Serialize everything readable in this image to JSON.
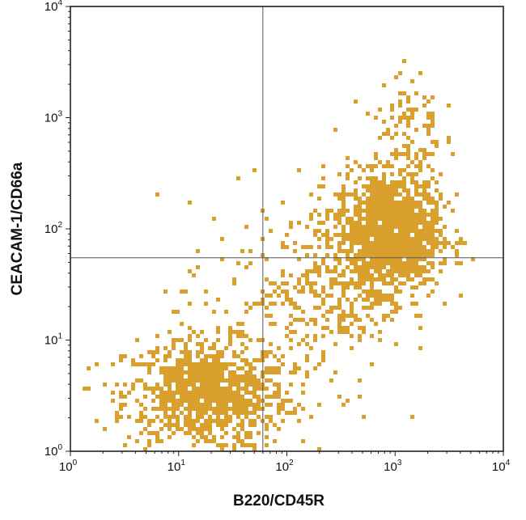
{
  "chart_data": {
    "type": "scatter",
    "subtype": "flow-cytometry-dot-plot",
    "xlabel": "B220/CD45R",
    "ylabel": "CEACAM-1/CD66a",
    "xscale": "log",
    "yscale": "log",
    "xlim": [
      1,
      10000
    ],
    "ylim": [
      1,
      10000
    ],
    "x_ticks": [
      {
        "value": 1,
        "base": "10",
        "exp": "0"
      },
      {
        "value": 10,
        "base": "10",
        "exp": "1"
      },
      {
        "value": 100,
        "base": "10",
        "exp": "2"
      },
      {
        "value": 1000,
        "base": "10",
        "exp": "3"
      },
      {
        "value": 10000,
        "base": "10",
        "exp": "4"
      }
    ],
    "y_ticks": [
      {
        "value": 1,
        "base": "10",
        "exp": "0"
      },
      {
        "value": 10,
        "base": "10",
        "exp": "1"
      },
      {
        "value": 100,
        "base": "10",
        "exp": "2"
      },
      {
        "value": 1000,
        "base": "10",
        "exp": "3"
      },
      {
        "value": 10000,
        "base": "10",
        "exp": "4"
      }
    ],
    "quadrant_gates": {
      "x": 60,
      "y": 55
    },
    "point_color": "#D9A02E",
    "populations": [
      {
        "center": [
          18,
          3.2
        ],
        "spread": [
          0.38,
          0.25
        ],
        "count": 900
      },
      {
        "center": [
          850,
          95
        ],
        "spread": [
          0.24,
          0.26
        ],
        "count": 1400
      },
      {
        "center": [
          280,
          30
        ],
        "spread": [
          0.33,
          0.32
        ],
        "count": 260
      },
      {
        "center": [
          1300,
          700
        ],
        "spread": [
          0.16,
          0.32
        ],
        "count": 120
      },
      {
        "center": [
          80,
          12
        ],
        "spread": [
          0.55,
          0.55
        ],
        "count": 160
      }
    ],
    "grid": false,
    "legend": "none"
  },
  "colors": {
    "points": "#D9A02E",
    "axis": "#222222",
    "gate": "#555555"
  }
}
